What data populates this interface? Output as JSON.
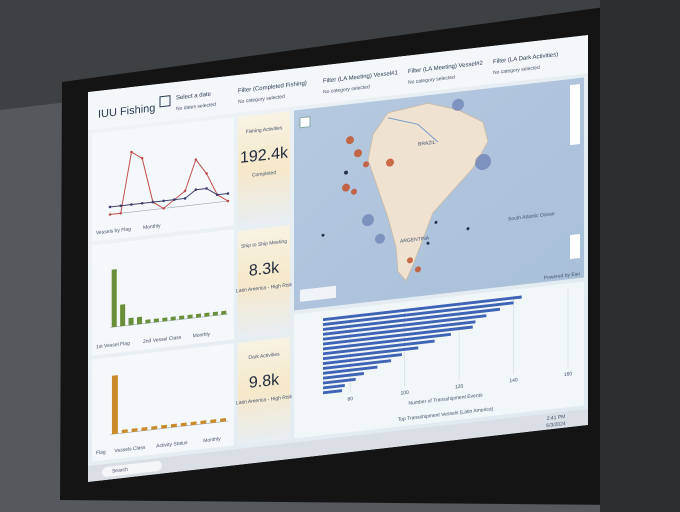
{
  "header": {
    "title": "IUU Fishing",
    "date_filter": {
      "label": "Select a date",
      "value": "No dates selected"
    },
    "filters": [
      {
        "label": "Filter (Completed Fishing)",
        "value": "No category selected"
      },
      {
        "label": "Filter (LA Meeting) Vessel#1",
        "value": "No category selected"
      },
      {
        "label": "Filter (LA Meeting) Vessel#2",
        "value": "No category selected"
      },
      {
        "label": "Filter (LA Dark Activities)",
        "value": "No category selected"
      }
    ]
  },
  "kpis": [
    {
      "title": "Fishing Activities",
      "value": "192.4k",
      "caption": "Completed"
    },
    {
      "title": "Ship to Ship Meeting",
      "value": "8.3k",
      "caption": "Latin America - High Risk"
    },
    {
      "title": "Dark Activities",
      "value": "9.8k",
      "caption": "Latin America - High Risk"
    }
  ],
  "tabs": [
    [
      "Vessels by Flag",
      "Monthly"
    ],
    [
      "1st Vessel Flag",
      "2nd Vessel Class",
      "Monthly"
    ],
    [
      "Flag",
      "Vessels Class",
      "Activity Status",
      "Monthly"
    ]
  ],
  "map": {
    "labels": [
      "BRAZIL",
      "ARGENTINA",
      "South Atlantic Ocean"
    ],
    "attribution": "Powered by Esri"
  },
  "taskbar": {
    "search": "Search",
    "time": "2:41 PM",
    "date": "6/3/2024"
  },
  "chart_data": [
    {
      "type": "line",
      "categories": [
        null,
        null,
        null,
        null,
        null,
        null,
        null,
        null,
        null,
        null,
        null,
        null
      ],
      "ylim": [
        0,
        10
      ],
      "series": [
        {
          "color": "#c0504d",
          "values": [
            0,
            0,
            8,
            7,
            1,
            0,
            1,
            2,
            6,
            4,
            1,
            0
          ]
        },
        {
          "color": "#3a3f6b",
          "values": [
            1,
            1,
            1,
            1,
            1,
            1,
            1,
            1,
            2,
            2,
            1,
            1
          ]
        }
      ]
    },
    {
      "type": "bar",
      "categories": [
        null,
        null,
        null,
        null,
        null,
        null,
        null,
        null,
        null,
        null,
        null,
        null,
        null,
        null
      ],
      "values": [
        16,
        6,
        2,
        2,
        1,
        1,
        1,
        1,
        1,
        1,
        1,
        1,
        1,
        1
      ],
      "color": "#6a8f3a",
      "ylim": [
        0,
        20
      ]
    },
    {
      "type": "bar",
      "categories": [
        null,
        null,
        null,
        null,
        null,
        null,
        null,
        null,
        null,
        null,
        null,
        null
      ],
      "values": [
        18,
        1,
        1,
        1,
        1,
        1,
        1,
        1,
        1,
        1,
        1,
        1
      ],
      "color": "#c98a2a",
      "ylim": [
        0,
        20
      ]
    },
    {
      "type": "hbar",
      "categories": [
        null,
        null,
        null,
        null,
        null,
        null,
        null,
        null,
        null,
        null,
        null,
        null,
        null,
        null,
        null,
        null
      ],
      "values": [
        143,
        140,
        135,
        130,
        126,
        125,
        117,
        111,
        105,
        99,
        95,
        90,
        85,
        82,
        78,
        77
      ],
      "color": "#3f63b5",
      "xlim": [
        70,
        160
      ],
      "xticks": [
        80,
        100,
        120,
        140,
        160
      ],
      "xlabel": "Number of Transshipment Events",
      "title": "Top Transshipment Vessels (Latin America)"
    }
  ]
}
